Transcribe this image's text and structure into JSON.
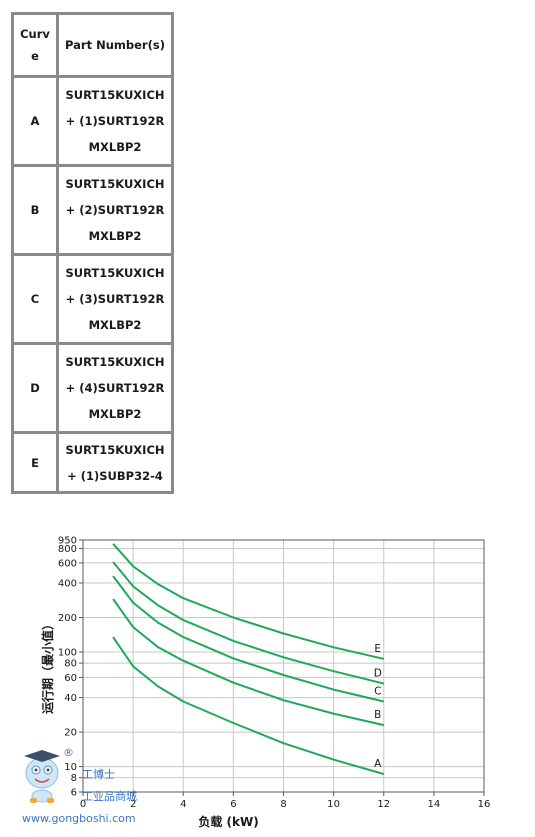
{
  "table": {
    "headers": [
      "Curv\ne",
      "Part Number(s)"
    ],
    "rows": [
      {
        "curve": "A",
        "lines": [
          "SURT15KUXICH",
          "+ (1)SURT192R",
          "MXLBP2"
        ]
      },
      {
        "curve": "B",
        "lines": [
          "SURT15KUXICH",
          "+ (2)SURT192R",
          "MXLBP2"
        ]
      },
      {
        "curve": "C",
        "lines": [
          "SURT15KUXICH",
          "+ (3)SURT192R",
          "MXLBP2"
        ]
      },
      {
        "curve": "D",
        "lines": [
          "SURT15KUXICH",
          "+ (4)SURT192R",
          "MXLBP2"
        ]
      },
      {
        "curve": "E",
        "lines": [
          "SURT15KUXICH",
          "+ (1)SUBP32-4"
        ]
      }
    ]
  },
  "chart_data": {
    "type": "line",
    "xlabel": "负载 (kW)",
    "ylabel": "运行期（最小值）",
    "xlim": [
      0,
      16
    ],
    "ylim": [
      6,
      950
    ],
    "yscale": "log",
    "xticks": [
      0,
      2,
      4,
      6,
      8,
      10,
      12,
      14,
      16
    ],
    "yticks": [
      6,
      8,
      10,
      20,
      40,
      60,
      80,
      100,
      200,
      400,
      600,
      800,
      950
    ],
    "grid": true,
    "color": "#1faa5a",
    "series": [
      {
        "name": "A",
        "x": [
          1.2,
          2,
          3,
          4,
          6,
          8,
          10,
          12
        ],
        "y": [
          135,
          75,
          50,
          37,
          24,
          16,
          11.5,
          8.6
        ]
      },
      {
        "name": "B",
        "x": [
          1.2,
          2,
          3,
          4,
          6,
          8,
          10,
          12
        ],
        "y": [
          290,
          165,
          110,
          84,
          54,
          38,
          29,
          23
        ]
      },
      {
        "name": "C",
        "x": [
          1.2,
          2,
          3,
          4,
          6,
          8,
          10,
          12
        ],
        "y": [
          460,
          270,
          180,
          135,
          88,
          63,
          47,
          37
        ]
      },
      {
        "name": "D",
        "x": [
          1.2,
          2,
          3,
          4,
          6,
          8,
          10,
          12
        ],
        "y": [
          610,
          375,
          255,
          190,
          125,
          90,
          68,
          53
        ]
      },
      {
        "name": "E",
        "x": [
          1.2,
          2,
          3,
          4,
          6,
          8,
          10,
          12
        ],
        "y": [
          880,
          560,
          390,
          295,
          200,
          145,
          110,
          87
        ]
      }
    ]
  },
  "watermark": {
    "cn": "工博士",
    "sub": "工业品商城",
    "url": "www.gongboshi.com",
    "reg": "®"
  }
}
